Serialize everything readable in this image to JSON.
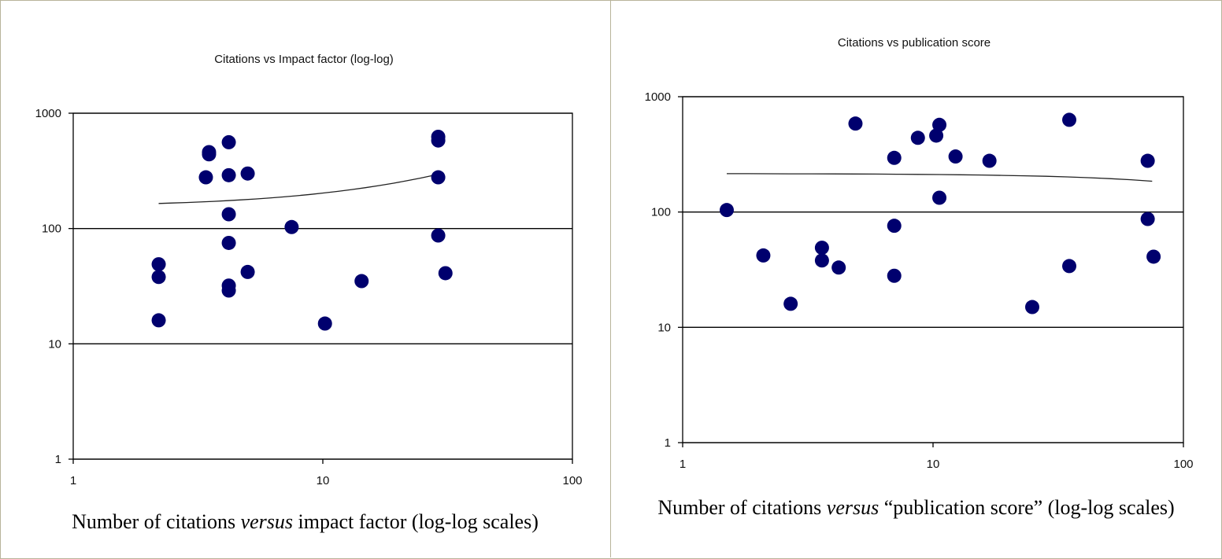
{
  "chart_data": [
    {
      "type": "scatter",
      "title": "Citations vs Impact factor (log-log)",
      "xlabel": "",
      "ylabel": "",
      "xscale": "log",
      "yscale": "log",
      "xlim": [
        1,
        100
      ],
      "ylim": [
        1,
        1000
      ],
      "x_ticks": [
        "1",
        "10",
        "100"
      ],
      "y_ticks": [
        "1",
        "10",
        "100",
        "1000"
      ],
      "grid": "horizontal major gridlines",
      "marker_color": "#00006e",
      "trendline": {
        "x": [
          2.2,
          28
        ],
        "y": [
          165,
          290
        ]
      },
      "points": [
        {
          "x": 2.2,
          "y": 49
        },
        {
          "x": 2.2,
          "y": 38
        },
        {
          "x": 2.2,
          "y": 16
        },
        {
          "x": 3.4,
          "y": 278
        },
        {
          "x": 3.5,
          "y": 460
        },
        {
          "x": 3.5,
          "y": 440
        },
        {
          "x": 4.2,
          "y": 560
        },
        {
          "x": 4.2,
          "y": 290
        },
        {
          "x": 4.2,
          "y": 133
        },
        {
          "x": 4.2,
          "y": 75
        },
        {
          "x": 4.2,
          "y": 32
        },
        {
          "x": 4.2,
          "y": 29
        },
        {
          "x": 5.0,
          "y": 300
        },
        {
          "x": 5.0,
          "y": 42
        },
        {
          "x": 7.5,
          "y": 103
        },
        {
          "x": 10.2,
          "y": 15
        },
        {
          "x": 14.3,
          "y": 35
        },
        {
          "x": 29,
          "y": 625
        },
        {
          "x": 29,
          "y": 580
        },
        {
          "x": 29,
          "y": 278
        },
        {
          "x": 29,
          "y": 87
        },
        {
          "x": 31,
          "y": 41
        }
      ]
    },
    {
      "type": "scatter",
      "title": "Citations vs publication score",
      "xlabel": "",
      "ylabel": "",
      "xscale": "log",
      "yscale": "log",
      "xlim": [
        1,
        100
      ],
      "ylim": [
        1,
        1000
      ],
      "x_ticks": [
        "1",
        "10",
        "100"
      ],
      "y_ticks": [
        "1",
        "10",
        "100",
        "1000"
      ],
      "grid": "horizontal major gridlines",
      "marker_color": "#00006e",
      "trendline": {
        "x": [
          1.5,
          75
        ],
        "y": [
          215,
          185
        ]
      },
      "points": [
        {
          "x": 1.5,
          "y": 104
        },
        {
          "x": 2.1,
          "y": 42
        },
        {
          "x": 2.7,
          "y": 16
        },
        {
          "x": 3.6,
          "y": 49
        },
        {
          "x": 3.6,
          "y": 38
        },
        {
          "x": 4.2,
          "y": 33
        },
        {
          "x": 4.9,
          "y": 585
        },
        {
          "x": 7.0,
          "y": 295
        },
        {
          "x": 7.0,
          "y": 76
        },
        {
          "x": 7.0,
          "y": 28
        },
        {
          "x": 8.7,
          "y": 440
        },
        {
          "x": 10.3,
          "y": 460
        },
        {
          "x": 10.6,
          "y": 570
        },
        {
          "x": 10.6,
          "y": 133
        },
        {
          "x": 12.3,
          "y": 303
        },
        {
          "x": 16.8,
          "y": 278
        },
        {
          "x": 24.9,
          "y": 15
        },
        {
          "x": 35,
          "y": 630
        },
        {
          "x": 35,
          "y": 34
        },
        {
          "x": 72,
          "y": 278
        },
        {
          "x": 72,
          "y": 87
        },
        {
          "x": 76,
          "y": 41
        }
      ]
    }
  ],
  "captions": [
    {
      "pre": "Number of citations ",
      "em": "versus",
      "post": " impact factor (log-log scales)"
    },
    {
      "pre": "Number of citations ",
      "em": "versus",
      "post": " “publication score” (log-log scales)"
    }
  ]
}
